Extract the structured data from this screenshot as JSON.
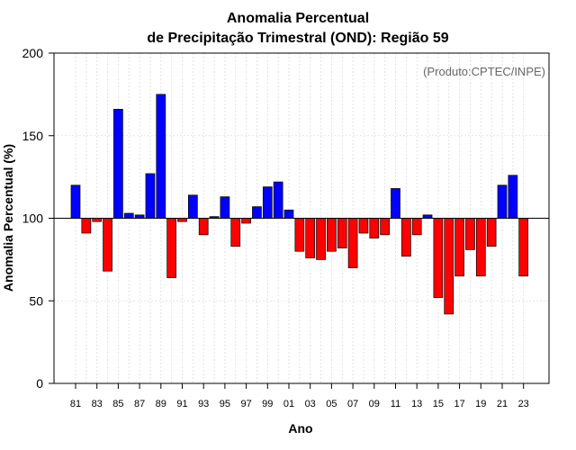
{
  "chart_data": {
    "type": "bar",
    "title": "Anomalia Percentual",
    "subtitle": "de Precipitação Trimestral (OND): Região 59",
    "xlabel": "Ano",
    "ylabel": "Anomalia Percentual (%)",
    "annotation": "(Produto:CPTEC/INPE)",
    "ylim": [
      0,
      200
    ],
    "yticks": [
      0,
      50,
      100,
      150,
      200
    ],
    "baseline": 100,
    "grid": true,
    "colors": {
      "above": "#0000ff",
      "below": "#ff0000",
      "outline": "#000000",
      "grid": "#dddddd"
    },
    "categories": [
      "81",
      "82",
      "83",
      "84",
      "85",
      "86",
      "87",
      "88",
      "89",
      "90",
      "91",
      "92",
      "93",
      "94",
      "95",
      "96",
      "97",
      "98",
      "99",
      "00",
      "01",
      "02",
      "03",
      "04",
      "05",
      "06",
      "07",
      "08",
      "09",
      "10",
      "11",
      "12",
      "13",
      "14",
      "15",
      "16",
      "17",
      "18",
      "19",
      "20",
      "21",
      "22",
      "23"
    ],
    "tick_labels": [
      "81",
      "83",
      "85",
      "87",
      "89",
      "91",
      "93",
      "95",
      "97",
      "99",
      "01",
      "03",
      "05",
      "07",
      "09",
      "11",
      "13",
      "15",
      "17",
      "19",
      "21",
      "23"
    ],
    "values": [
      120,
      91,
      98,
      68,
      166,
      103,
      102,
      127,
      175,
      64,
      98,
      114,
      90,
      101,
      113,
      83,
      97,
      107,
      119,
      122,
      105,
      80,
      76,
      75,
      80,
      82,
      70,
      91,
      88,
      90,
      118,
      77,
      90,
      102,
      52,
      42,
      65,
      81,
      65,
      83,
      120,
      126,
      65
    ]
  }
}
